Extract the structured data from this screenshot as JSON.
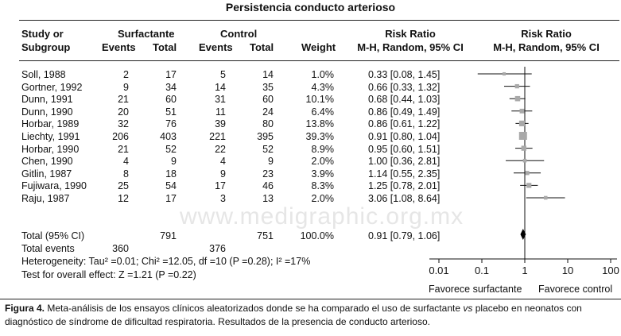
{
  "title": "Persistencia conducto arterioso",
  "headers": {
    "study_line1": "Study or",
    "study_line2": "Subgroup",
    "surf_group": "Surfactante",
    "control_group": "Control",
    "events": "Events",
    "total": "Total",
    "weight": "Weight",
    "rr_text_line1": "Risk Ratio",
    "rr_text_line2": "M-H, Random, 95% CI",
    "rr_plot_line1": "Risk Ratio",
    "rr_plot_line2": "M-H, Random, 95% CI"
  },
  "rows": [
    {
      "study": "Soll, 1988",
      "se": "2",
      "st": "17",
      "ce": "5",
      "ct": "14",
      "weight": "1.0%",
      "ci_text": "0.33 [0.08, 1.45]"
    },
    {
      "study": "Gortner, 1992",
      "se": "9",
      "st": "34",
      "ce": "14",
      "ct": "35",
      "weight": "4.3%",
      "ci_text": "0.66 [0.33, 1.32]"
    },
    {
      "study": "Dunn, 1991",
      "se": "21",
      "st": "60",
      "ce": "31",
      "ct": "60",
      "weight": "10.1%",
      "ci_text": "0.68 [0.44, 1.03]"
    },
    {
      "study": "Dunn, 1990",
      "se": "20",
      "st": "51",
      "ce": "11",
      "ct": "24",
      "weight": "6.4%",
      "ci_text": "0.86 [0.49, 1.49]"
    },
    {
      "study": "Horbar, 1989",
      "se": "32",
      "st": "76",
      "ce": "39",
      "ct": "80",
      "weight": "13.8%",
      "ci_text": "0.86 [0.61, 1.22]"
    },
    {
      "study": "Liechty, 1991",
      "se": "206",
      "st": "403",
      "ce": "221",
      "ct": "395",
      "weight": "39.3%",
      "ci_text": "0.91 [0.80, 1.04]"
    },
    {
      "study": "Horbar, 1990",
      "se": "21",
      "st": "52",
      "ce": "22",
      "ct": "52",
      "weight": "8.9%",
      "ci_text": "0.95 [0.60, 1.51]"
    },
    {
      "study": "Chen, 1990",
      "se": "4",
      "st": "9",
      "ce": "4",
      "ct": "9",
      "weight": "2.0%",
      "ci_text": "1.00 [0.36, 2.81]"
    },
    {
      "study": "Gitlin, 1987",
      "se": "8",
      "st": "18",
      "ce": "9",
      "ct": "23",
      "weight": "3.9%",
      "ci_text": "1.14 [0.55, 2.35]"
    },
    {
      "study": "Fujiwara, 1990",
      "se": "25",
      "st": "54",
      "ce": "17",
      "ct": "46",
      "weight": "8.3%",
      "ci_text": "1.25 [0.78, 2.01]"
    },
    {
      "study": "Raju, 1987",
      "se": "12",
      "st": "17",
      "ce": "3",
      "ct": "13",
      "weight": "2.0%",
      "ci_text": "3.06 [1.08, 8.64]"
    }
  ],
  "total_row": {
    "study": "Total (95% CI)",
    "st": "791",
    "ct": "751",
    "weight": "100.0%",
    "ci_text": "0.91 [0.79, 1.06]"
  },
  "total_events": {
    "label": "Total events",
    "surf": "360",
    "control": "376"
  },
  "heterogeneity": "Heterogeneity: Tau² =0.01; Chi² =12.05, df =10 (P =0.28); I² =17%",
  "overall_effect": "Test for overall effect: Z =1.21 (P =0.22)",
  "favours_left": "Favorece surfactante",
  "favours_right": "Favorece control",
  "watermark": "www.medigraphic.org.mx",
  "caption": {
    "label": "Figura 4.",
    "text_before_vs": "Meta-análisis de los ensayos clínicos aleatorizados donde se ha comparado el uso de surfactante",
    "vs": "vs",
    "text_after_vs": "placebo en neonatos con diagnóstico de síndrome de dificultad respiratoria. Resultados de la presencia de conducto arterioso."
  },
  "colors": {
    "study_marker": "#a9a9a9",
    "summary_marker": "#000000",
    "lines": "#111111"
  },
  "chart_data": {
    "type": "forest",
    "x_scale": "log",
    "xlim": [
      0.01,
      100
    ],
    "x_ticks": [
      0.01,
      0.1,
      1,
      10,
      100
    ],
    "x_tick_labels": [
      "0.01",
      "0.1",
      "1",
      "10",
      "100"
    ],
    "studies": [
      {
        "name": "Soll, 1988",
        "rr": 0.33,
        "lo": 0.08,
        "hi": 1.45,
        "weight": 1.0
      },
      {
        "name": "Gortner, 1992",
        "rr": 0.66,
        "lo": 0.33,
        "hi": 1.32,
        "weight": 4.3
      },
      {
        "name": "Dunn, 1991",
        "rr": 0.68,
        "lo": 0.44,
        "hi": 1.03,
        "weight": 10.1
      },
      {
        "name": "Dunn, 1990",
        "rr": 0.86,
        "lo": 0.49,
        "hi": 1.49,
        "weight": 6.4
      },
      {
        "name": "Horbar, 1989",
        "rr": 0.86,
        "lo": 0.61,
        "hi": 1.22,
        "weight": 13.8
      },
      {
        "name": "Liechty, 1991",
        "rr": 0.91,
        "lo": 0.8,
        "hi": 1.04,
        "weight": 39.3
      },
      {
        "name": "Horbar, 1990",
        "rr": 0.95,
        "lo": 0.6,
        "hi": 1.51,
        "weight": 8.9
      },
      {
        "name": "Chen, 1990",
        "rr": 1.0,
        "lo": 0.36,
        "hi": 2.81,
        "weight": 2.0
      },
      {
        "name": "Gitlin, 1987",
        "rr": 1.14,
        "lo": 0.55,
        "hi": 2.35,
        "weight": 3.9
      },
      {
        "name": "Fujiwara, 1990",
        "rr": 1.25,
        "lo": 0.78,
        "hi": 2.01,
        "weight": 8.3
      },
      {
        "name": "Raju, 1987",
        "rr": 3.06,
        "lo": 1.08,
        "hi": 8.64,
        "weight": 2.0
      }
    ],
    "summary": {
      "name": "Total (95% CI)",
      "rr": 0.91,
      "lo": 0.79,
      "hi": 1.06
    }
  }
}
